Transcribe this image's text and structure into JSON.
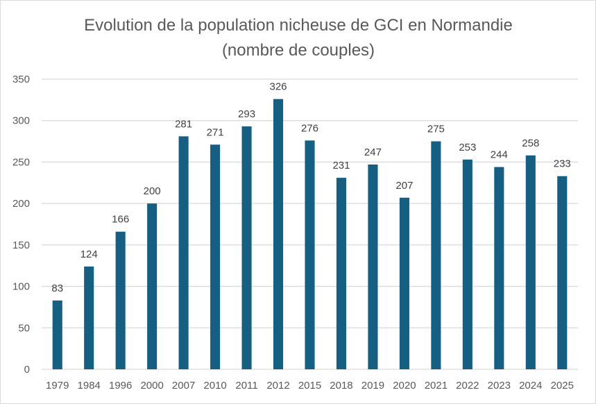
{
  "chart_data": {
    "type": "bar",
    "title": "Evolution de la population nicheuse de GCI en Normandie",
    "subtitle": "(nombre de couples)",
    "xlabel": "",
    "ylabel": "",
    "categories": [
      "1979",
      "1984",
      "1996",
      "2000",
      "2007",
      "2010",
      "2011",
      "2012",
      "2015",
      "2018",
      "2019",
      "2020",
      "2021",
      "2022",
      "2023",
      "2024",
      "2025"
    ],
    "values": [
      83,
      124,
      166,
      200,
      281,
      271,
      293,
      326,
      276,
      231,
      247,
      207,
      275,
      253,
      244,
      258,
      233
    ],
    "ylim": [
      0,
      350
    ],
    "yticks": [
      0,
      50,
      100,
      150,
      200,
      250,
      300,
      350
    ],
    "grid": true,
    "legend": "none",
    "data_labels": true,
    "colors": {
      "bar": "#155F82",
      "grid": "#D9D9D9",
      "text": "#595959"
    }
  }
}
